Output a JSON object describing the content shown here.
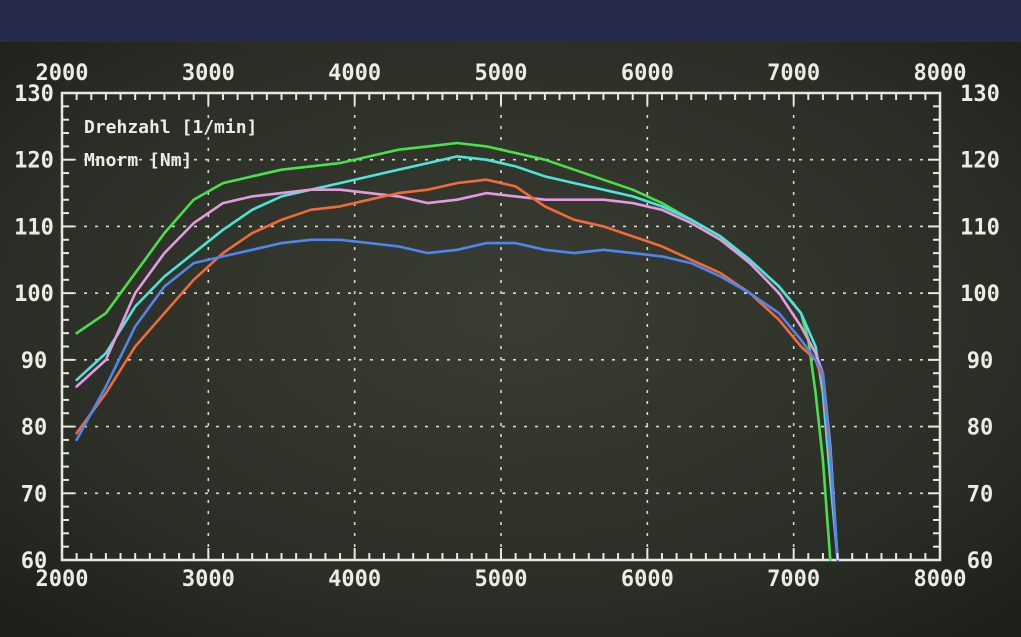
{
  "chart_data": {
    "type": "line",
    "legend_lines": [
      "Drehzahl [1/min]",
      "Mnorm [Nm]"
    ],
    "legend_placement": "top-left",
    "grid": true,
    "xlim": [
      2000,
      8000
    ],
    "ylim": [
      60,
      130
    ],
    "x_ticks": [
      2000,
      3000,
      4000,
      5000,
      6000,
      7000,
      8000
    ],
    "y_ticks": [
      60,
      70,
      80,
      90,
      100,
      110,
      120,
      130
    ],
    "series": [
      {
        "color": "#4ae04a",
        "points": [
          [
            2100,
            94
          ],
          [
            2300,
            97
          ],
          [
            2500,
            103
          ],
          [
            2700,
            109
          ],
          [
            2900,
            114
          ],
          [
            3100,
            116.5
          ],
          [
            3300,
            117.5
          ],
          [
            3500,
            118.5
          ],
          [
            3700,
            119
          ],
          [
            3900,
            119.5
          ],
          [
            4100,
            120.5
          ],
          [
            4300,
            121.5
          ],
          [
            4500,
            122
          ],
          [
            4700,
            122.5
          ],
          [
            4900,
            122
          ],
          [
            5100,
            121
          ],
          [
            5300,
            120
          ],
          [
            5500,
            118.5
          ],
          [
            5700,
            117
          ],
          [
            5900,
            115.5
          ],
          [
            6100,
            113.5
          ],
          [
            6300,
            111
          ],
          [
            6500,
            108.5
          ],
          [
            6700,
            105
          ],
          [
            6900,
            101
          ],
          [
            7050,
            97
          ],
          [
            7100,
            93
          ],
          [
            7150,
            85
          ],
          [
            7200,
            75
          ],
          [
            7250,
            60
          ]
        ]
      },
      {
        "color": "#4de3d6",
        "points": [
          [
            2100,
            87
          ],
          [
            2300,
            91
          ],
          [
            2500,
            98
          ],
          [
            2700,
            102.5
          ],
          [
            2900,
            106
          ],
          [
            3100,
            109.5
          ],
          [
            3300,
            112.5
          ],
          [
            3500,
            114.5
          ],
          [
            3700,
            115.5
          ],
          [
            3900,
            116.5
          ],
          [
            4100,
            117.5
          ],
          [
            4300,
            118.5
          ],
          [
            4500,
            119.5
          ],
          [
            4700,
            120.5
          ],
          [
            4900,
            120
          ],
          [
            5100,
            119
          ],
          [
            5300,
            117.5
          ],
          [
            5500,
            116.5
          ],
          [
            5700,
            115.5
          ],
          [
            5900,
            114.5
          ],
          [
            6100,
            113
          ],
          [
            6300,
            111
          ],
          [
            6500,
            108.5
          ],
          [
            6700,
            105
          ],
          [
            6900,
            101
          ],
          [
            7050,
            97
          ],
          [
            7150,
            92
          ],
          [
            7200,
            85
          ],
          [
            7250,
            72
          ],
          [
            7300,
            60
          ]
        ]
      },
      {
        "color": "#e59ae0",
        "points": [
          [
            2100,
            86
          ],
          [
            2300,
            90
          ],
          [
            2500,
            100
          ],
          [
            2700,
            106
          ],
          [
            2900,
            110.5
          ],
          [
            3100,
            113.5
          ],
          [
            3300,
            114.5
          ],
          [
            3500,
            115
          ],
          [
            3700,
            115.5
          ],
          [
            3900,
            115.5
          ],
          [
            4100,
            115
          ],
          [
            4300,
            114.5
          ],
          [
            4500,
            113.5
          ],
          [
            4700,
            114
          ],
          [
            4900,
            115
          ],
          [
            5100,
            114.5
          ],
          [
            5300,
            114
          ],
          [
            5500,
            114
          ],
          [
            5700,
            114
          ],
          [
            5900,
            113.5
          ],
          [
            6100,
            112.5
          ],
          [
            6300,
            110.5
          ],
          [
            6500,
            108
          ],
          [
            6700,
            104.5
          ],
          [
            6900,
            100
          ],
          [
            7050,
            95
          ],
          [
            7150,
            91
          ],
          [
            7200,
            88
          ],
          [
            7250,
            77
          ],
          [
            7300,
            60
          ]
        ]
      },
      {
        "color": "#f06a3a",
        "points": [
          [
            2100,
            79
          ],
          [
            2300,
            85
          ],
          [
            2500,
            92
          ],
          [
            2700,
            97
          ],
          [
            2900,
            102
          ],
          [
            3100,
            106
          ],
          [
            3300,
            109
          ],
          [
            3500,
            111
          ],
          [
            3700,
            112.5
          ],
          [
            3900,
            113
          ],
          [
            4100,
            114
          ],
          [
            4300,
            115
          ],
          [
            4500,
            115.5
          ],
          [
            4700,
            116.5
          ],
          [
            4900,
            117
          ],
          [
            5100,
            116
          ],
          [
            5300,
            113
          ],
          [
            5500,
            111
          ],
          [
            5700,
            110
          ],
          [
            5900,
            108.5
          ],
          [
            6100,
            107
          ],
          [
            6300,
            105
          ],
          [
            6500,
            103
          ],
          [
            6700,
            100
          ],
          [
            6900,
            96
          ],
          [
            7050,
            92
          ],
          [
            7150,
            90
          ],
          [
            7200,
            87
          ],
          [
            7250,
            75
          ],
          [
            7300,
            60
          ]
        ]
      },
      {
        "color": "#4d86ee",
        "points": [
          [
            2100,
            78
          ],
          [
            2300,
            86
          ],
          [
            2500,
            95
          ],
          [
            2700,
            101
          ],
          [
            2900,
            104.5
          ],
          [
            3100,
            105.5
          ],
          [
            3300,
            106.5
          ],
          [
            3500,
            107.5
          ],
          [
            3700,
            108
          ],
          [
            3900,
            108
          ],
          [
            4100,
            107.5
          ],
          [
            4300,
            107
          ],
          [
            4500,
            106
          ],
          [
            4700,
            106.5
          ],
          [
            4900,
            107.5
          ],
          [
            5100,
            107.5
          ],
          [
            5300,
            106.5
          ],
          [
            5500,
            106
          ],
          [
            5700,
            106.5
          ],
          [
            5900,
            106
          ],
          [
            6100,
            105.5
          ],
          [
            6300,
            104.5
          ],
          [
            6500,
            102.5
          ],
          [
            6700,
            100
          ],
          [
            6900,
            97
          ],
          [
            7050,
            93
          ],
          [
            7150,
            90
          ],
          [
            7200,
            88
          ],
          [
            7250,
            76
          ],
          [
            7300,
            60
          ]
        ]
      }
    ]
  }
}
